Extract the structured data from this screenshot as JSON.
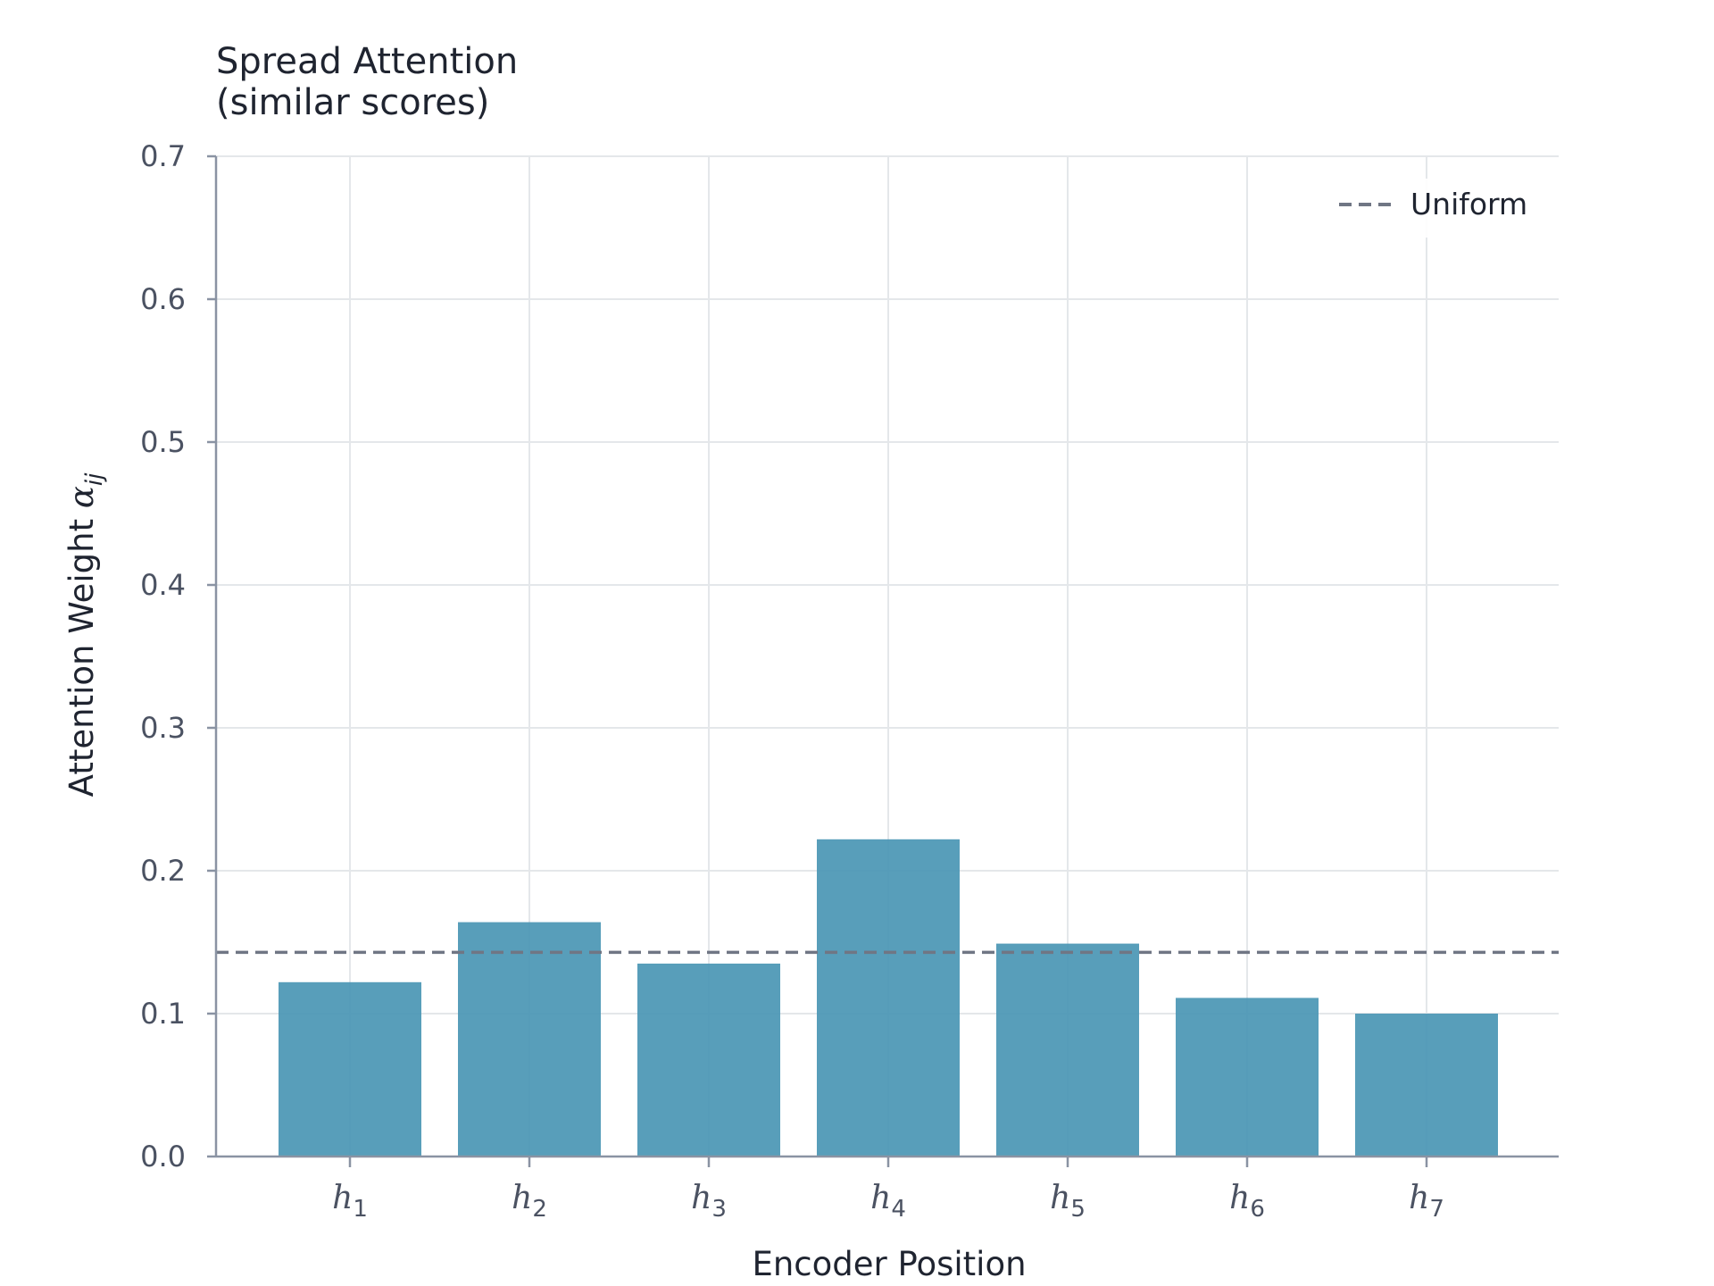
{
  "chart_data": {
    "type": "bar",
    "title_lines": [
      "Spread Attention",
      "(similar scores)"
    ],
    "xlabel": "Encoder Position",
    "ylabel_main": "Attention Weight ",
    "ylabel_symbol": "α",
    "ylabel_subscript": "ij",
    "categories": [
      {
        "base": "h",
        "sub": "1"
      },
      {
        "base": "h",
        "sub": "2"
      },
      {
        "base": "h",
        "sub": "3"
      },
      {
        "base": "h",
        "sub": "4"
      },
      {
        "base": "h",
        "sub": "5"
      },
      {
        "base": "h",
        "sub": "6"
      },
      {
        "base": "h",
        "sub": "7"
      }
    ],
    "values": [
      0.122,
      0.164,
      0.135,
      0.222,
      0.149,
      0.111,
      0.1
    ],
    "ylim": [
      0,
      0.7
    ],
    "yticks": [
      0.0,
      0.1,
      0.2,
      0.3,
      0.4,
      0.5,
      0.6,
      0.7
    ],
    "ytick_labels": [
      "0.0",
      "0.1",
      "0.2",
      "0.3",
      "0.4",
      "0.5",
      "0.6",
      "0.7"
    ],
    "reference_line": {
      "label": "Uniform",
      "value": 0.1429,
      "style": "dashed"
    },
    "legend_position": "top-right",
    "grid": true,
    "colors": {
      "bar": "#4a96b4",
      "reference": "#707684",
      "grid": "#e4e7ea",
      "axis": "#8a93a3"
    }
  }
}
